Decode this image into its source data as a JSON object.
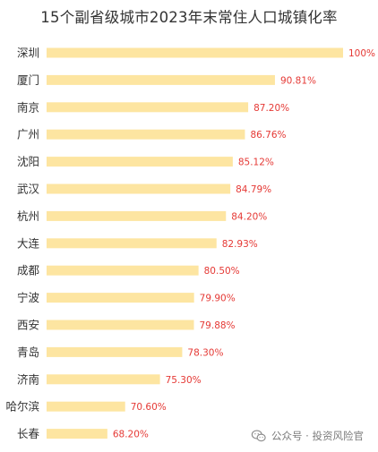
{
  "chart_data": {
    "type": "bar",
    "orientation": "horizontal",
    "title": "15个副省级城市2023年末常住人口城镇化率",
    "categories": [
      "深圳",
      "厦门",
      "南京",
      "广州",
      "沈阳",
      "武汉",
      "杭州",
      "大连",
      "成都",
      "宁波",
      "西安",
      "青岛",
      "济南",
      "哈尔滨",
      "长春"
    ],
    "values": [
      100,
      90.81,
      87.2,
      86.76,
      85.12,
      84.79,
      84.2,
      82.93,
      80.5,
      79.9,
      79.88,
      78.3,
      75.3,
      70.6,
      68.2
    ],
    "labels": [
      "100%",
      "90.81%",
      "87.20%",
      "86.76%",
      "85.12%",
      "84.79%",
      "84.20%",
      "82.93%",
      "80.50%",
      "79.90%",
      "79.88%",
      "78.30%",
      "75.30%",
      "70.60%",
      "68.20%"
    ],
    "xlim": [
      60,
      100
    ],
    "grid": false,
    "bar_color": "#fde5a1",
    "first_label_color": "#e53935",
    "label_color": "#e53935",
    "category_color": "#333333"
  },
  "watermark": {
    "icon": "wechat-icon",
    "text": "公众号 · 投资风险官"
  }
}
